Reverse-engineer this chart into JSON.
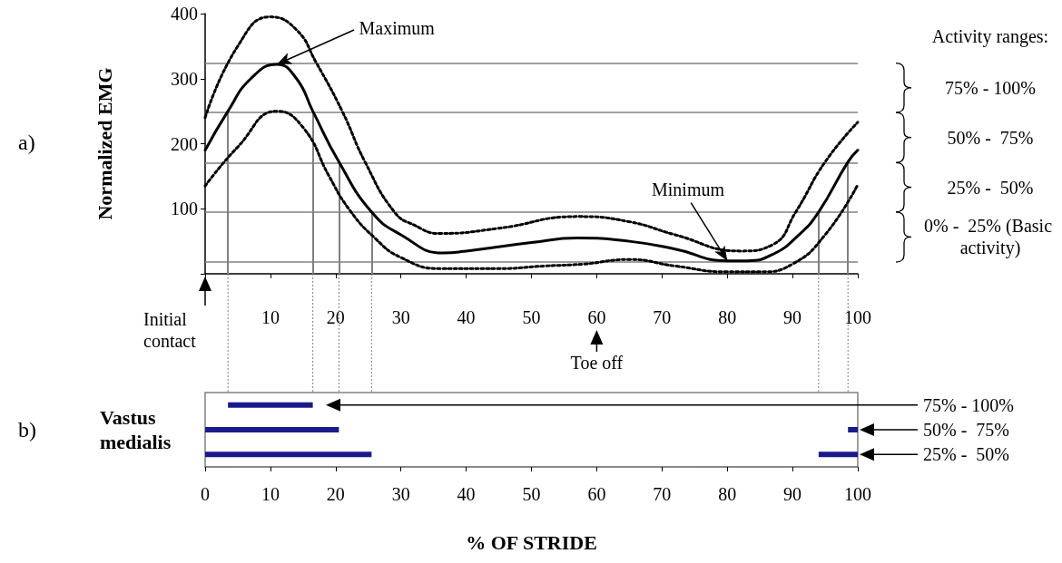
{
  "chart_data": [
    {
      "type": "line",
      "ylabel": "Normalized EMG",
      "xlim": [
        0,
        100
      ],
      "ylim": [
        0,
        400
      ],
      "xticks": [
        {
          "value": 0,
          "label": null
        },
        10,
        20,
        30,
        40,
        50,
        60,
        70,
        80,
        90,
        100
      ],
      "yticks": [
        {
          "value": 0,
          "label": null
        },
        100,
        200,
        300,
        400
      ],
      "marker": "none",
      "series": [
        {
          "color": "#000000",
          "line_style": "solid",
          "x": [
            0,
            3.5,
            7,
            11,
            14,
            16.5,
            20.5,
            25.5,
            30,
            36.5,
            40,
            50,
            57,
            65,
            72,
            80,
            83,
            87,
            91,
            94,
            98.5,
            100
          ],
          "values": [
            190,
            250,
            300,
            322,
            300,
            250,
            172,
            95,
            60,
            32,
            35,
            48,
            55,
            50,
            38,
            20,
            20,
            30,
            60,
            95,
            172,
            190
          ]
        },
        {
          "color": "#000000",
          "line_style": "dotted",
          "x": [
            0,
            5,
            10,
            14,
            17,
            21,
            24.5,
            29,
            32,
            36,
            45,
            57,
            65,
            72,
            82,
            87,
            90.5,
            95,
            100
          ],
          "values": [
            240,
            350,
            395,
            375,
            325,
            250,
            172,
            95,
            75,
            62,
            70,
            88,
            80,
            60,
            35,
            45,
            95,
            172,
            233
          ]
        },
        {
          "color": "#000000",
          "line_style": "dotted",
          "x": [
            0,
            5,
            11,
            15,
            19,
            22,
            26,
            30,
            36,
            45,
            52,
            58,
            65,
            72,
            80,
            85,
            90,
            95,
            100
          ],
          "values": [
            135,
            195,
            250,
            225,
            150,
            100,
            55,
            25,
            8,
            8,
            12,
            15,
            22,
            12,
            3,
            3,
            15,
            60,
            137
          ]
        }
      ],
      "ref_lines": [
        {
          "axis": "y",
          "value": 324,
          "color": "#808080"
        },
        {
          "axis": "y",
          "value": 248,
          "color": "#808080"
        },
        {
          "axis": "y",
          "value": 171,
          "color": "#808080"
        },
        {
          "axis": "y",
          "value": 95,
          "color": "#808080"
        },
        {
          "axis": "y",
          "value": 18,
          "color": "#808080"
        },
        {
          "axis": "x",
          "value": 3.5,
          "color": "#808080"
        },
        {
          "axis": "x",
          "value": 16.5,
          "color": "#808080"
        },
        {
          "axis": "x",
          "value": 20.5,
          "color": "#808080"
        },
        {
          "axis": "x",
          "value": 25.5,
          "color": "#808080"
        },
        {
          "axis": "x",
          "value": 94,
          "color": "#808080"
        },
        {
          "axis": "x",
          "value": 98.5,
          "color": "#808080"
        }
      ],
      "annotations": [
        "a)",
        {
          "text": "Maximum",
          "x": 11,
          "y": 322
        },
        {
          "text": "Minimum",
          "x": 80,
          "y": 20
        },
        "Initial contact",
        "Toe off",
        "Activity ranges:",
        "75% - 100%",
        "50% -  75%",
        "25% -  50%",
        "0% -  25% (Basic activity)"
      ]
    },
    {
      "type": "bar",
      "orientation": "horizontal",
      "ylabel": "Vastus medialis",
      "xlabel": "% OF STRIDE",
      "categories": [
        "75% - 100%",
        "50% -  75%",
        "25% -  50%"
      ],
      "xlim": [
        0,
        100
      ],
      "xticks": [
        0,
        10,
        20,
        30,
        40,
        50,
        60,
        70,
        80,
        90,
        100
      ],
      "series": [
        {
          "color": "#1a1a8c",
          "base": [
            3.5,
            0,
            0
          ],
          "values": [
            13,
            20.5,
            25.5
          ]
        },
        {
          "color": "#1a1a8c",
          "base": [
            null,
            98.5,
            94
          ],
          "values": [
            null,
            1.5,
            6
          ]
        }
      ],
      "annotations": [
        "b)"
      ]
    }
  ]
}
